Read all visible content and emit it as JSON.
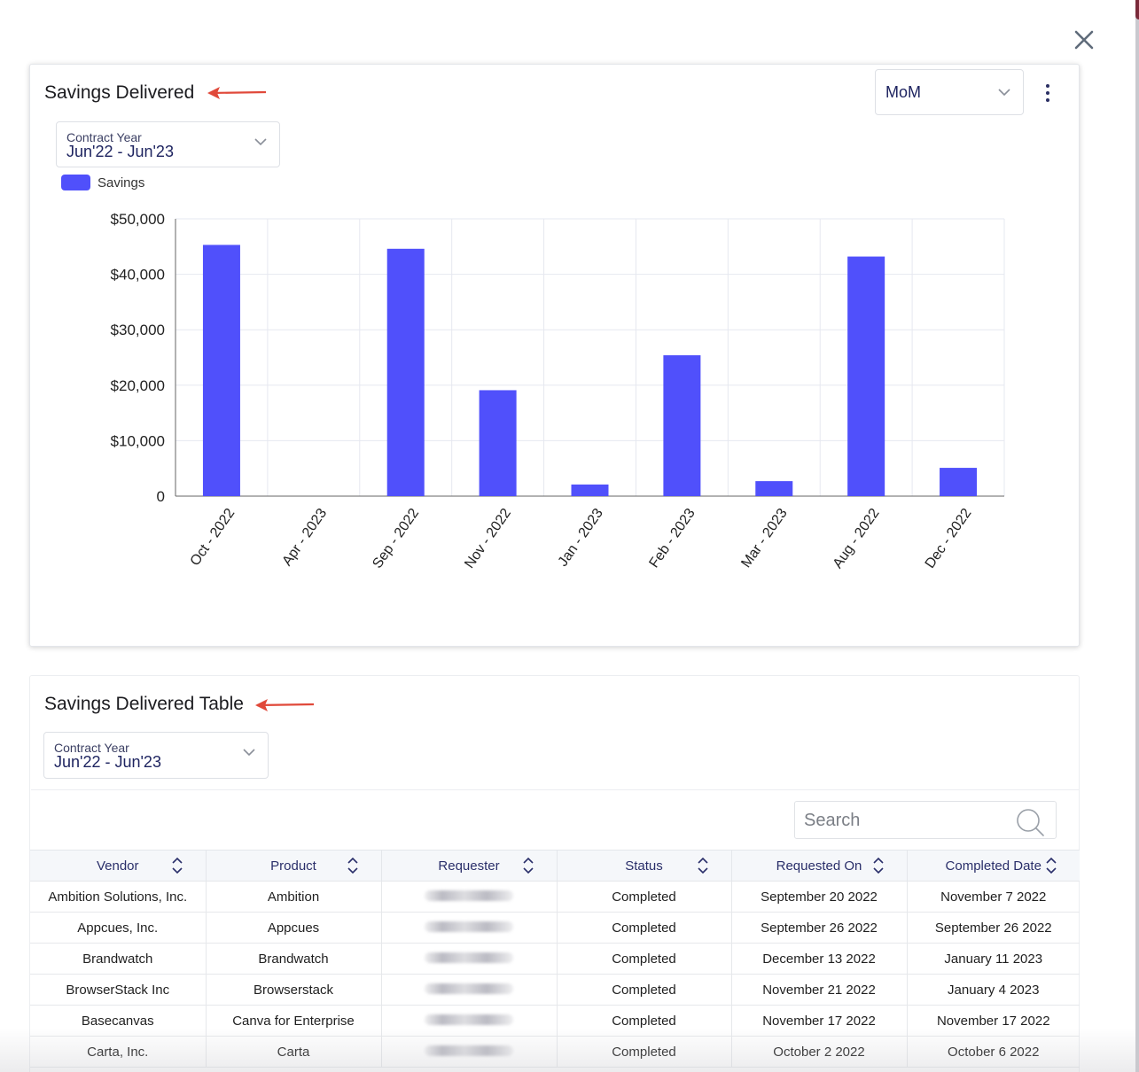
{
  "chart_card": {
    "title": "Savings Delivered",
    "period_select": {
      "value": "MoM"
    },
    "contract_year": {
      "label": "Contract Year",
      "value": "Jun'22 - Jun'23"
    },
    "legend": [
      {
        "label": "Savings",
        "color": "#5050fb"
      }
    ]
  },
  "chart_data": {
    "type": "bar",
    "categories": [
      "Oct - 2022",
      "Apr - 2023",
      "Sep - 2022",
      "Nov - 2022",
      "Jan - 2023",
      "Feb - 2023",
      "Mar - 2023",
      "Aug - 2022",
      "Dec - 2022"
    ],
    "series": [
      {
        "name": "Savings",
        "values": [
          45300,
          0,
          44600,
          19100,
          2100,
          25400,
          2700,
          43200,
          5100
        ]
      }
    ],
    "yticks": [
      "0",
      "$10,000",
      "$20,000",
      "$30,000",
      "$40,000",
      "$50,000"
    ],
    "ylim": [
      0,
      50000
    ],
    "grid": true,
    "legend_position": "top-left",
    "bar_color": "#5050fb"
  },
  "table_card": {
    "title": "Savings Delivered Table",
    "contract_year": {
      "label": "Contract Year",
      "value": "Jun'22 - Jun'23"
    },
    "search": {
      "placeholder": "Search"
    },
    "columns": [
      "Vendor",
      "Product",
      "Requester",
      "Status",
      "Requested On",
      "Completed Date"
    ],
    "rows": [
      [
        "Ambition Solutions, Inc.",
        "Ambition",
        "",
        "Completed",
        "September 20 2022",
        "November 7 2022"
      ],
      [
        "Appcues, Inc.",
        "Appcues",
        "",
        "Completed",
        "September 26 2022",
        "September 26 2022"
      ],
      [
        "Brandwatch",
        "Brandwatch",
        "",
        "Completed",
        "December 13 2022",
        "January 11 2023"
      ],
      [
        "BrowserStack Inc",
        "Browserstack",
        "",
        "Completed",
        "November 21 2022",
        "January 4 2023"
      ],
      [
        "Basecanvas",
        "Canva for Enterprise",
        "",
        "Completed",
        "November 17 2022",
        "November 17 2022"
      ],
      [
        "Carta, Inc.",
        "Carta",
        "",
        "Completed",
        "October 2 2022",
        "October 6 2022"
      ]
    ]
  },
  "colors": {
    "accent": "#5050fb",
    "arrow": "#e0493a",
    "header_text": "#2a2f6a"
  }
}
